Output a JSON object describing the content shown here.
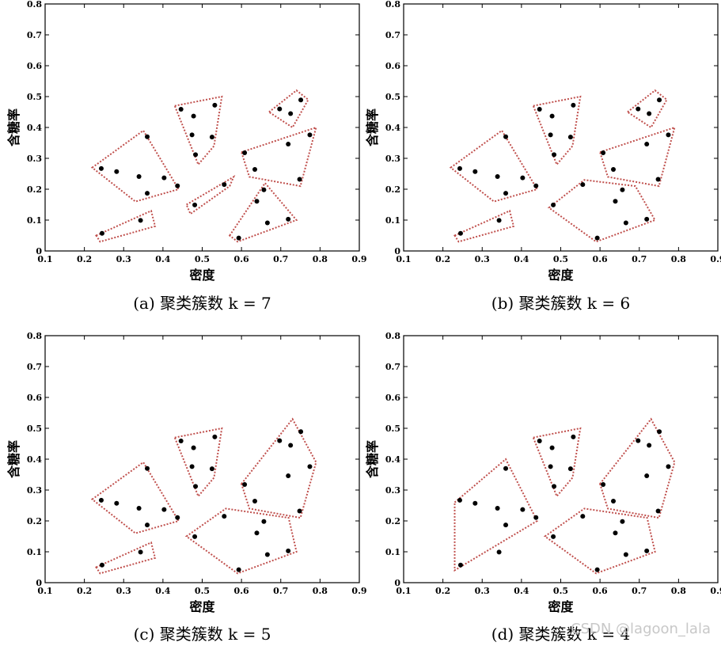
{
  "chart_data": [
    {
      "type": "scatter",
      "caption": "(a) 聚类簇数 k = 7",
      "xlabel": "密度",
      "ylabel": "含糖率",
      "xlim": [
        0.1,
        0.9
      ],
      "ylim": [
        0,
        0.8
      ],
      "xticks": [
        "0.1",
        "0.2",
        "0.3",
        "0.4",
        "0.5",
        "0.6",
        "0.7",
        "0.8",
        "0.9"
      ],
      "yticks": [
        "0",
        "0.1",
        "0.2",
        "0.3",
        "0.4",
        "0.5",
        "0.6",
        "0.7",
        "0.8"
      ],
      "points": [
        [
          0.243,
          0.267
        ],
        [
          0.245,
          0.057
        ],
        [
          0.282,
          0.257
        ],
        [
          0.339,
          0.241
        ],
        [
          0.343,
          0.099
        ],
        [
          0.36,
          0.37
        ],
        [
          0.36,
          0.187
        ],
        [
          0.403,
          0.237
        ],
        [
          0.437,
          0.211
        ],
        [
          0.446,
          0.459
        ],
        [
          0.474,
          0.376
        ],
        [
          0.481,
          0.149
        ],
        [
          0.478,
          0.437
        ],
        [
          0.483,
          0.312
        ],
        [
          0.525,
          0.369
        ],
        [
          0.532,
          0.472
        ],
        [
          0.556,
          0.215
        ],
        [
          0.593,
          0.042
        ],
        [
          0.608,
          0.318
        ],
        [
          0.634,
          0.264
        ],
        [
          0.639,
          0.161
        ],
        [
          0.657,
          0.198
        ],
        [
          0.666,
          0.091
        ],
        [
          0.697,
          0.46
        ],
        [
          0.719,
          0.103
        ],
        [
          0.725,
          0.445
        ],
        [
          0.748,
          0.232
        ],
        [
          0.751,
          0.489
        ],
        [
          0.774,
          0.376
        ],
        [
          0.719,
          0.346
        ]
      ],
      "clusters": [
        [
          [
            0.22,
            0.27
          ],
          [
            0.35,
            0.39
          ],
          [
            0.44,
            0.2
          ],
          [
            0.33,
            0.16
          ]
        ],
        [
          [
            0.23,
            0.05
          ],
          [
            0.37,
            0.13
          ],
          [
            0.38,
            0.08
          ],
          [
            0.24,
            0.03
          ]
        ],
        [
          [
            0.43,
            0.47
          ],
          [
            0.55,
            0.5
          ],
          [
            0.53,
            0.34
          ],
          [
            0.49,
            0.28
          ]
        ],
        [
          [
            0.46,
            0.15
          ],
          [
            0.58,
            0.24
          ],
          [
            0.57,
            0.21
          ],
          [
            0.47,
            0.12
          ]
        ],
        [
          [
            0.67,
            0.45
          ],
          [
            0.74,
            0.52
          ],
          [
            0.77,
            0.49
          ],
          [
            0.73,
            0.4
          ]
        ],
        [
          [
            0.6,
            0.32
          ],
          [
            0.79,
            0.4
          ],
          [
            0.75,
            0.21
          ],
          [
            0.62,
            0.24
          ]
        ],
        [
          [
            0.57,
            0.05
          ],
          [
            0.66,
            0.22
          ],
          [
            0.74,
            0.1
          ],
          [
            0.59,
            0.03
          ]
        ]
      ]
    },
    {
      "type": "scatter",
      "caption": "(b) 聚类簇数 k = 6",
      "xlabel": "密度",
      "ylabel": "含糖率",
      "xlim": [
        0.1,
        0.9
      ],
      "ylim": [
        0,
        0.8
      ],
      "xticks": [
        "0.1",
        "0.2",
        "0.3",
        "0.4",
        "0.5",
        "0.6",
        "0.7",
        "0.8",
        "0.9"
      ],
      "yticks": [
        "0",
        "0.1",
        "0.2",
        "0.3",
        "0.4",
        "0.5",
        "0.6",
        "0.7",
        "0.8"
      ],
      "points": [
        [
          0.243,
          0.267
        ],
        [
          0.245,
          0.057
        ],
        [
          0.282,
          0.257
        ],
        [
          0.339,
          0.241
        ],
        [
          0.343,
          0.099
        ],
        [
          0.36,
          0.37
        ],
        [
          0.36,
          0.187
        ],
        [
          0.403,
          0.237
        ],
        [
          0.437,
          0.211
        ],
        [
          0.446,
          0.459
        ],
        [
          0.474,
          0.376
        ],
        [
          0.481,
          0.149
        ],
        [
          0.478,
          0.437
        ],
        [
          0.483,
          0.312
        ],
        [
          0.525,
          0.369
        ],
        [
          0.532,
          0.472
        ],
        [
          0.556,
          0.215
        ],
        [
          0.593,
          0.042
        ],
        [
          0.608,
          0.318
        ],
        [
          0.634,
          0.264
        ],
        [
          0.639,
          0.161
        ],
        [
          0.657,
          0.198
        ],
        [
          0.666,
          0.091
        ],
        [
          0.697,
          0.46
        ],
        [
          0.719,
          0.103
        ],
        [
          0.725,
          0.445
        ],
        [
          0.748,
          0.232
        ],
        [
          0.751,
          0.489
        ],
        [
          0.774,
          0.376
        ],
        [
          0.719,
          0.346
        ]
      ],
      "clusters": [
        [
          [
            0.22,
            0.27
          ],
          [
            0.35,
            0.39
          ],
          [
            0.44,
            0.2
          ],
          [
            0.33,
            0.16
          ]
        ],
        [
          [
            0.23,
            0.05
          ],
          [
            0.37,
            0.13
          ],
          [
            0.38,
            0.08
          ],
          [
            0.24,
            0.03
          ]
        ],
        [
          [
            0.43,
            0.47
          ],
          [
            0.55,
            0.5
          ],
          [
            0.53,
            0.34
          ],
          [
            0.49,
            0.28
          ]
        ],
        [
          [
            0.67,
            0.45
          ],
          [
            0.74,
            0.52
          ],
          [
            0.77,
            0.49
          ],
          [
            0.73,
            0.4
          ]
        ],
        [
          [
            0.6,
            0.32
          ],
          [
            0.79,
            0.4
          ],
          [
            0.75,
            0.21
          ],
          [
            0.62,
            0.24
          ]
        ],
        [
          [
            0.47,
            0.14
          ],
          [
            0.56,
            0.23
          ],
          [
            0.69,
            0.21
          ],
          [
            0.74,
            0.1
          ],
          [
            0.59,
            0.03
          ]
        ]
      ]
    },
    {
      "type": "scatter",
      "caption": "(c) 聚类簇数 k = 5",
      "xlabel": "密度",
      "ylabel": "含糖率",
      "xlim": [
        0.1,
        0.9
      ],
      "ylim": [
        0,
        0.8
      ],
      "xticks": [
        "0.1",
        "0.2",
        "0.3",
        "0.4",
        "0.5",
        "0.6",
        "0.7",
        "0.8",
        "0.9"
      ],
      "yticks": [
        "0",
        "0.1",
        "0.2",
        "0.3",
        "0.4",
        "0.5",
        "0.6",
        "0.7",
        "0.8"
      ],
      "points": [
        [
          0.243,
          0.267
        ],
        [
          0.245,
          0.057
        ],
        [
          0.282,
          0.257
        ],
        [
          0.339,
          0.241
        ],
        [
          0.343,
          0.099
        ],
        [
          0.36,
          0.37
        ],
        [
          0.36,
          0.187
        ],
        [
          0.403,
          0.237
        ],
        [
          0.437,
          0.211
        ],
        [
          0.446,
          0.459
        ],
        [
          0.474,
          0.376
        ],
        [
          0.481,
          0.149
        ],
        [
          0.478,
          0.437
        ],
        [
          0.483,
          0.312
        ],
        [
          0.525,
          0.369
        ],
        [
          0.532,
          0.472
        ],
        [
          0.556,
          0.215
        ],
        [
          0.593,
          0.042
        ],
        [
          0.608,
          0.318
        ],
        [
          0.634,
          0.264
        ],
        [
          0.639,
          0.161
        ],
        [
          0.657,
          0.198
        ],
        [
          0.666,
          0.091
        ],
        [
          0.697,
          0.46
        ],
        [
          0.719,
          0.103
        ],
        [
          0.725,
          0.445
        ],
        [
          0.748,
          0.232
        ],
        [
          0.751,
          0.489
        ],
        [
          0.774,
          0.376
        ],
        [
          0.719,
          0.346
        ]
      ],
      "clusters": [
        [
          [
            0.22,
            0.27
          ],
          [
            0.35,
            0.39
          ],
          [
            0.44,
            0.2
          ],
          [
            0.33,
            0.16
          ]
        ],
        [
          [
            0.23,
            0.05
          ],
          [
            0.37,
            0.13
          ],
          [
            0.38,
            0.08
          ],
          [
            0.24,
            0.03
          ]
        ],
        [
          [
            0.43,
            0.47
          ],
          [
            0.55,
            0.5
          ],
          [
            0.53,
            0.34
          ],
          [
            0.49,
            0.28
          ]
        ],
        [
          [
            0.6,
            0.32
          ],
          [
            0.73,
            0.53
          ],
          [
            0.79,
            0.39
          ],
          [
            0.75,
            0.21
          ],
          [
            0.62,
            0.24
          ]
        ],
        [
          [
            0.46,
            0.15
          ],
          [
            0.56,
            0.24
          ],
          [
            0.72,
            0.21
          ],
          [
            0.74,
            0.1
          ],
          [
            0.59,
            0.03
          ]
        ]
      ]
    },
    {
      "type": "scatter",
      "caption": "(d) 聚类簇数 k = 4",
      "xlabel": "密度",
      "ylabel": "含糖率",
      "xlim": [
        0.1,
        0.9
      ],
      "ylim": [
        0,
        0.8
      ],
      "xticks": [
        "0.1",
        "0.2",
        "0.3",
        "0.4",
        "0.5",
        "0.6",
        "0.7",
        "0.8",
        "0.9"
      ],
      "yticks": [
        "0",
        "0.1",
        "0.2",
        "0.3",
        "0.4",
        "0.5",
        "0.6",
        "0.7",
        "0.8"
      ],
      "points": [
        [
          0.243,
          0.267
        ],
        [
          0.245,
          0.057
        ],
        [
          0.282,
          0.257
        ],
        [
          0.339,
          0.241
        ],
        [
          0.343,
          0.099
        ],
        [
          0.36,
          0.37
        ],
        [
          0.36,
          0.187
        ],
        [
          0.403,
          0.237
        ],
        [
          0.437,
          0.211
        ],
        [
          0.446,
          0.459
        ],
        [
          0.474,
          0.376
        ],
        [
          0.481,
          0.149
        ],
        [
          0.478,
          0.437
        ],
        [
          0.483,
          0.312
        ],
        [
          0.525,
          0.369
        ],
        [
          0.532,
          0.472
        ],
        [
          0.556,
          0.215
        ],
        [
          0.593,
          0.042
        ],
        [
          0.608,
          0.318
        ],
        [
          0.634,
          0.264
        ],
        [
          0.639,
          0.161
        ],
        [
          0.657,
          0.198
        ],
        [
          0.666,
          0.091
        ],
        [
          0.697,
          0.46
        ],
        [
          0.719,
          0.103
        ],
        [
          0.725,
          0.445
        ],
        [
          0.748,
          0.232
        ],
        [
          0.751,
          0.489
        ],
        [
          0.774,
          0.376
        ],
        [
          0.719,
          0.346
        ]
      ],
      "clusters": [
        [
          [
            0.23,
            0.26
          ],
          [
            0.36,
            0.4
          ],
          [
            0.44,
            0.2
          ],
          [
            0.23,
            0.04
          ]
        ],
        [
          [
            0.43,
            0.47
          ],
          [
            0.55,
            0.5
          ],
          [
            0.53,
            0.34
          ],
          [
            0.49,
            0.28
          ]
        ],
        [
          [
            0.6,
            0.32
          ],
          [
            0.73,
            0.53
          ],
          [
            0.79,
            0.39
          ],
          [
            0.75,
            0.21
          ],
          [
            0.62,
            0.24
          ]
        ],
        [
          [
            0.46,
            0.15
          ],
          [
            0.56,
            0.24
          ],
          [
            0.72,
            0.21
          ],
          [
            0.74,
            0.1
          ],
          [
            0.59,
            0.03
          ]
        ]
      ]
    }
  ],
  "colors": {
    "cluster_outline": "#c0504d",
    "point": "#000000",
    "watermark": "#c8c8c8"
  },
  "watermark": "CSDN @lagoon_lala"
}
